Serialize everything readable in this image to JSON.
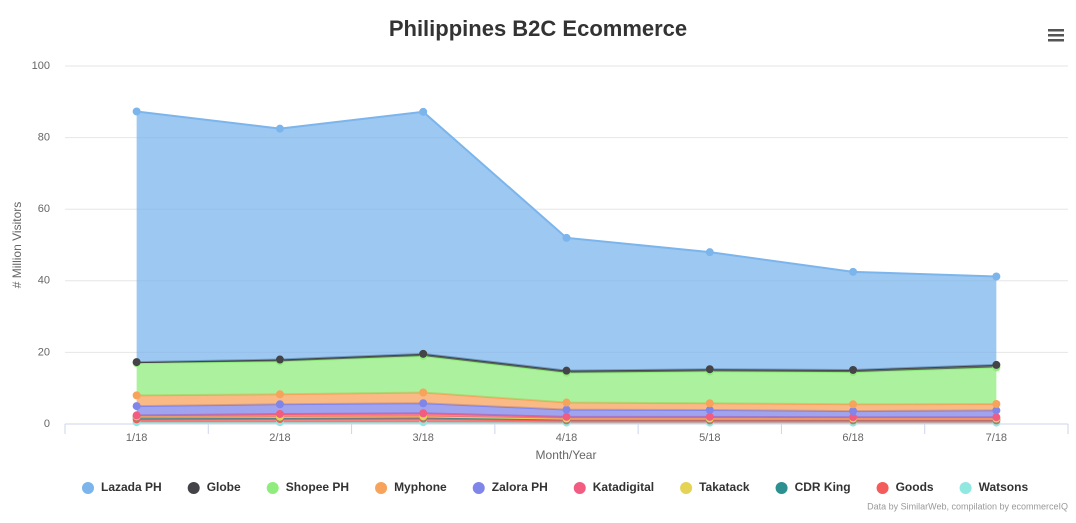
{
  "chart_data": {
    "type": "area",
    "stacked": true,
    "title": "Philippines B2C Ecommerce",
    "x_label": "Month/Year",
    "y_label": "# Million Visitors",
    "credits": "Data by SimilarWeb, compilation by ecommerceIQ",
    "categories": [
      "1/18",
      "2/18",
      "3/18",
      "4/18",
      "5/18",
      "6/18",
      "7/18"
    ],
    "ylim": [
      0,
      100
    ],
    "yticks": [
      0,
      20,
      40,
      60,
      80,
      100
    ],
    "grid": true,
    "series": [
      {
        "name": "Lazada PH",
        "color": "#7cb5ec",
        "values": [
          70,
          64.5,
          67.6,
          37.1,
          32.7,
          27.4,
          24.7
        ]
      },
      {
        "name": "Globe",
        "color": "#434348",
        "values": [
          0.3,
          0.5,
          0.6,
          0.6,
          0.6,
          0.6,
          0.7
        ]
      },
      {
        "name": "Shopee PH",
        "color": "#90ed7d",
        "values": [
          9.0,
          9.2,
          10.2,
          8.3,
          8.9,
          9.0,
          10.2
        ]
      },
      {
        "name": "Myphone",
        "color": "#f7a35c",
        "values": [
          3.0,
          2.8,
          3.0,
          2.0,
          1.9,
          1.9,
          1.8
        ]
      },
      {
        "name": "Zalora PH",
        "color": "#8085e9",
        "values": [
          2.6,
          2.7,
          2.8,
          2.0,
          1.9,
          1.7,
          1.9
        ]
      },
      {
        "name": "Katadigital",
        "color": "#f15c80",
        "values": [
          0.3,
          0.8,
          0.9,
          0.5,
          0.5,
          0.4,
          0.4
        ]
      },
      {
        "name": "Takatack",
        "color": "#e4d354",
        "values": [
          0.1,
          0.1,
          0.1,
          0.1,
          0.1,
          0.1,
          0.1
        ]
      },
      {
        "name": "CDR King",
        "color": "#2b908f",
        "values": [
          0.7,
          0.5,
          0.5,
          0.4,
          0.4,
          0.4,
          0.4
        ]
      },
      {
        "name": "Goods",
        "color": "#f45b5b",
        "values": [
          0.8,
          0.9,
          1.0,
          0.6,
          0.6,
          0.6,
          0.6
        ]
      },
      {
        "name": "Watsons",
        "color": "#91e8e1",
        "values": [
          0.5,
          0.5,
          0.5,
          0.4,
          0.4,
          0.4,
          0.4
        ]
      }
    ]
  }
}
